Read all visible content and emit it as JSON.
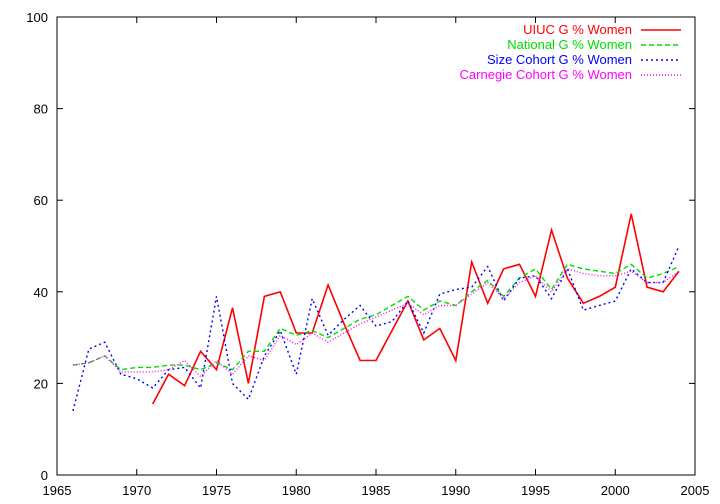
{
  "chart_data": {
    "type": "line",
    "title": "",
    "xlabel": "",
    "ylabel": "",
    "xlim": [
      1965,
      2005
    ],
    "ylim": [
      0,
      100
    ],
    "xticks": [
      1965,
      1970,
      1975,
      1980,
      1985,
      1990,
      1995,
      2000,
      2005
    ],
    "yticks": [
      0,
      20,
      40,
      60,
      80,
      100
    ],
    "grid": false,
    "legend_position": "top-right",
    "series": [
      {
        "name": "UIUC G % Women",
        "color": "#ff0000",
        "dash": "solid",
        "x": [
          1971,
          1972,
          1973,
          1974,
          1975,
          1976,
          1977,
          1978,
          1979,
          1980,
          1981,
          1982,
          1983,
          1984,
          1985,
          1986,
          1987,
          1988,
          1989,
          1990,
          1991,
          1992,
          1993,
          1994,
          1995,
          1996,
          1997,
          1998,
          1999,
          2000,
          2001,
          2002,
          2003,
          2004
        ],
        "y": [
          15.5,
          22,
          19.5,
          27,
          23,
          36.5,
          20,
          39,
          40,
          31,
          31,
          41.5,
          33,
          25,
          25,
          31.5,
          38,
          29.5,
          32,
          25,
          46.5,
          37.5,
          45,
          46,
          39,
          53.5,
          43,
          37.5,
          39,
          41,
          57,
          41,
          40,
          44.5
        ]
      },
      {
        "name": "National G % Women",
        "color": "#00dd00",
        "dash": "dashed",
        "x": [
          1966,
          1967,
          1968,
          1969,
          1970,
          1971,
          1972,
          1973,
          1974,
          1975,
          1976,
          1977,
          1978,
          1979,
          1980,
          1981,
          1982,
          1983,
          1984,
          1985,
          1986,
          1987,
          1988,
          1989,
          1990,
          1991,
          1992,
          1993,
          1994,
          1995,
          1996,
          1997,
          1998,
          1999,
          2000,
          2001,
          2002,
          2003,
          2004
        ],
        "y": [
          24,
          24.5,
          26,
          23,
          23.5,
          23.5,
          24,
          24,
          23,
          24.5,
          23,
          27,
          27,
          32,
          30.5,
          31.5,
          30,
          32,
          34,
          35,
          37,
          39,
          36,
          38,
          37,
          40,
          42.5,
          39,
          43,
          45,
          40.5,
          46,
          45,
          44.5,
          44,
          46,
          43,
          44,
          45.5
        ]
      },
      {
        "name": "Size Cohort G % Women",
        "color": "#0000ff",
        "dash": "dotted",
        "x": [
          1966,
          1967,
          1968,
          1969,
          1970,
          1971,
          1972,
          1973,
          1974,
          1975,
          1976,
          1977,
          1978,
          1979,
          1980,
          1981,
          1982,
          1983,
          1984,
          1985,
          1986,
          1987,
          1988,
          1989,
          1990,
          1991,
          1992,
          1993,
          1994,
          1995,
          1996,
          1997,
          1998,
          1999,
          2000,
          2001,
          2002,
          2003,
          2004
        ],
        "y": [
          14,
          27.5,
          29,
          22,
          21,
          19,
          23,
          23.5,
          19,
          39,
          20,
          16.5,
          26,
          31.5,
          22,
          38.5,
          30.5,
          34,
          37,
          32.5,
          33.5,
          38,
          31,
          39.5,
          40.5,
          41,
          45.5,
          38,
          43,
          43.5,
          38.5,
          45,
          36,
          37,
          38,
          45,
          42,
          42,
          50
        ]
      },
      {
        "name": "Carnegie Cohort G % Women",
        "color": "#ff00ff",
        "dash": "fine-dotted",
        "x": [
          1966,
          1967,
          1968,
          1969,
          1970,
          1971,
          1972,
          1973,
          1974,
          1975,
          1976,
          1977,
          1978,
          1979,
          1980,
          1981,
          1982,
          1983,
          1984,
          1985,
          1986,
          1987,
          1988,
          1989,
          1990,
          1991,
          1992,
          1993,
          1994,
          1995,
          1996,
          1997,
          1998,
          1999,
          2000,
          2001,
          2002,
          2003,
          2004
        ],
        "y": [
          24,
          24.5,
          26,
          22.5,
          22.5,
          22.5,
          23,
          25,
          21.5,
          25,
          22,
          26,
          25,
          30.5,
          28.5,
          31,
          29,
          31,
          33,
          34.5,
          36,
          37.5,
          35,
          37,
          37,
          39.5,
          42,
          38.5,
          42,
          43.5,
          40,
          45,
          44,
          43.5,
          43.5,
          44.5,
          42,
          42,
          44.5
        ]
      }
    ]
  }
}
